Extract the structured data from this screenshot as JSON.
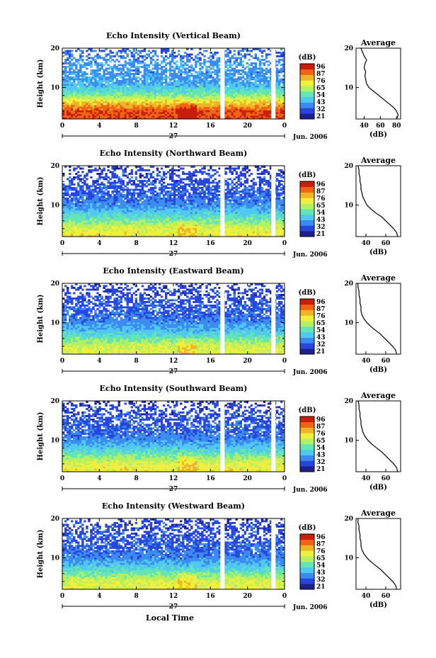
{
  "figure": {
    "xlabel": "Local Time",
    "date_label": "Jun. 2006",
    "day_label": "27",
    "colorbar_unit": "(dB)",
    "colorbar_ticks": [
      "96",
      "87",
      "76",
      "65",
      "54",
      "43",
      "32",
      "21"
    ],
    "colors": {
      "scale": [
        "#1e1e8c",
        "#2846dc",
        "#3c8cf0",
        "#50c8f0",
        "#64e6b4",
        "#b4f064",
        "#f0f03c",
        "#f0b428",
        "#f06414",
        "#c81e0a"
      ],
      "line": "#000000",
      "gap": "#ffffff"
    }
  },
  "chart_data": [
    {
      "type": "heatmap",
      "title": "Echo Intensity (Vertical Beam)",
      "ylabel": "Height (km)",
      "xlim": [
        0,
        24
      ],
      "ylim": [
        2,
        20
      ],
      "xticks": [
        0,
        4,
        8,
        12,
        16,
        20,
        24
      ],
      "yticks": [
        10,
        20
      ],
      "colorbar_range": [
        21,
        96
      ],
      "gaps_hours": [
        17.3,
        22.8
      ],
      "profile_by_height_dB": [
        {
          "height_km": 2,
          "dB": 87
        },
        {
          "height_km": 4,
          "dB": 88
        },
        {
          "height_km": 6,
          "dB": 76
        },
        {
          "height_km": 8,
          "dB": 58
        },
        {
          "height_km": 10,
          "dB": 48
        },
        {
          "height_km": 12,
          "dB": 42
        },
        {
          "height_km": 14,
          "dB": 40
        },
        {
          "height_km": 16,
          "dB": 42
        },
        {
          "height_km": 18,
          "dB": 38
        },
        {
          "height_km": 20,
          "dB": 34
        }
      ],
      "average": {
        "title": "Average",
        "xlabel": "(dB)",
        "xticks": [
          40,
          60,
          80
        ],
        "xlim": [
          30,
          85
        ],
        "heights": [
          2,
          3,
          4,
          5,
          6,
          7,
          8,
          9,
          10,
          11,
          12,
          13,
          14,
          15,
          16,
          17,
          18,
          19,
          20
        ],
        "values": [
          80,
          82,
          80,
          76,
          70,
          64,
          58,
          52,
          46,
          43,
          42,
          41,
          42,
          40,
          41,
          43,
          40,
          38,
          36
        ]
      }
    },
    {
      "type": "heatmap",
      "title": "Echo Intensity (Northward Beam)",
      "ylabel": "Height (km)",
      "xlim": [
        0,
        24
      ],
      "ylim": [
        2,
        20
      ],
      "xticks": [
        0,
        4,
        8,
        12,
        16,
        20,
        24
      ],
      "yticks": [
        10,
        20
      ],
      "colorbar_range": [
        21,
        96
      ],
      "gaps_hours": [
        17.3,
        22.8
      ],
      "profile_by_height_dB": [
        {
          "height_km": 2,
          "dB": 70
        },
        {
          "height_km": 4,
          "dB": 68
        },
        {
          "height_km": 6,
          "dB": 58
        },
        {
          "height_km": 8,
          "dB": 48
        },
        {
          "height_km": 10,
          "dB": 40
        },
        {
          "height_km": 12,
          "dB": 36
        },
        {
          "height_km": 14,
          "dB": 34
        },
        {
          "height_km": 16,
          "dB": 33
        },
        {
          "height_km": 18,
          "dB": 32
        },
        {
          "height_km": 20,
          "dB": 30
        }
      ],
      "average": {
        "title": "Average",
        "xlabel": "(dB)",
        "xticks": [
          40,
          60
        ],
        "xlim": [
          30,
          75
        ],
        "heights": [
          2,
          3,
          4,
          5,
          6,
          7,
          8,
          9,
          10,
          11,
          12,
          13,
          14,
          15,
          16,
          17,
          18,
          19,
          20
        ],
        "values": [
          72,
          71,
          68,
          64,
          60,
          56,
          50,
          45,
          41,
          39,
          37,
          36,
          35,
          35,
          34,
          34,
          33,
          33,
          32
        ]
      }
    },
    {
      "type": "heatmap",
      "title": "Echo Intensity (Eastward Beam)",
      "ylabel": "Height (km)",
      "xlim": [
        0,
        24
      ],
      "ylim": [
        2,
        20
      ],
      "xticks": [
        0,
        4,
        8,
        12,
        16,
        20,
        24
      ],
      "yticks": [
        10,
        20
      ],
      "colorbar_range": [
        21,
        96
      ],
      "gaps_hours": [
        17.3,
        22.8
      ],
      "profile_by_height_dB": [
        {
          "height_km": 2,
          "dB": 68
        },
        {
          "height_km": 4,
          "dB": 66
        },
        {
          "height_km": 6,
          "dB": 56
        },
        {
          "height_km": 8,
          "dB": 46
        },
        {
          "height_km": 10,
          "dB": 40
        },
        {
          "height_km": 12,
          "dB": 36
        },
        {
          "height_km": 14,
          "dB": 34
        },
        {
          "height_km": 16,
          "dB": 33
        },
        {
          "height_km": 18,
          "dB": 32
        },
        {
          "height_km": 20,
          "dB": 30
        }
      ],
      "average": {
        "title": "Average",
        "xlabel": "(dB)",
        "xticks": [
          40,
          60
        ],
        "xlim": [
          30,
          75
        ],
        "heights": [
          2,
          3,
          4,
          5,
          6,
          7,
          8,
          9,
          10,
          11,
          12,
          13,
          14,
          15,
          16,
          17,
          18,
          19,
          20
        ],
        "values": [
          71,
          70,
          67,
          63,
          59,
          55,
          50,
          45,
          41,
          38,
          36,
          35,
          35,
          34,
          34,
          33,
          33,
          32,
          32
        ]
      }
    },
    {
      "type": "heatmap",
      "title": "Echo Intensity (Southward Beam)",
      "ylabel": "Height (km)",
      "xlim": [
        0,
        24
      ],
      "ylim": [
        2,
        20
      ],
      "xticks": [
        0,
        4,
        8,
        12,
        16,
        20,
        24
      ],
      "yticks": [
        10,
        20
      ],
      "colorbar_range": [
        21,
        96
      ],
      "gaps_hours": [
        17.3,
        22.8
      ],
      "profile_by_height_dB": [
        {
          "height_km": 2,
          "dB": 70
        },
        {
          "height_km": 4,
          "dB": 68
        },
        {
          "height_km": 6,
          "dB": 58
        },
        {
          "height_km": 8,
          "dB": 48
        },
        {
          "height_km": 10,
          "dB": 40
        },
        {
          "height_km": 12,
          "dB": 36
        },
        {
          "height_km": 14,
          "dB": 34
        },
        {
          "height_km": 16,
          "dB": 33
        },
        {
          "height_km": 18,
          "dB": 32
        },
        {
          "height_km": 20,
          "dB": 30
        }
      ],
      "average": {
        "title": "Average",
        "xlabel": "(dB)",
        "xticks": [
          40,
          60
        ],
        "xlim": [
          30,
          75
        ],
        "heights": [
          2,
          3,
          4,
          5,
          6,
          7,
          8,
          9,
          10,
          11,
          12,
          13,
          14,
          15,
          16,
          17,
          18,
          19,
          20
        ],
        "values": [
          72,
          71,
          68,
          64,
          60,
          56,
          51,
          46,
          42,
          39,
          37,
          36,
          35,
          35,
          34,
          34,
          33,
          33,
          32
        ]
      }
    },
    {
      "type": "heatmap",
      "title": "Echo Intensity (Westward Beam)",
      "ylabel": "Height (km)",
      "xlim": [
        0,
        24
      ],
      "ylim": [
        2,
        20
      ],
      "xticks": [
        0,
        4,
        8,
        12,
        16,
        20,
        24
      ],
      "yticks": [
        10,
        20
      ],
      "colorbar_range": [
        21,
        96
      ],
      "gaps_hours": [
        17.3,
        22.8
      ],
      "profile_by_height_dB": [
        {
          "height_km": 2,
          "dB": 69
        },
        {
          "height_km": 4,
          "dB": 67
        },
        {
          "height_km": 6,
          "dB": 57
        },
        {
          "height_km": 8,
          "dB": 47
        },
        {
          "height_km": 10,
          "dB": 40
        },
        {
          "height_km": 12,
          "dB": 36
        },
        {
          "height_km": 14,
          "dB": 34
        },
        {
          "height_km": 16,
          "dB": 33
        },
        {
          "height_km": 18,
          "dB": 32
        },
        {
          "height_km": 20,
          "dB": 30
        }
      ],
      "average": {
        "title": "Average",
        "xlabel": "(dB)",
        "xticks": [
          40,
          60
        ],
        "xlim": [
          30,
          75
        ],
        "heights": [
          2,
          3,
          4,
          5,
          6,
          7,
          8,
          9,
          10,
          11,
          12,
          13,
          14,
          15,
          16,
          17,
          18,
          19,
          20
        ],
        "values": [
          71,
          70,
          67,
          63,
          59,
          55,
          50,
          45,
          41,
          38,
          36,
          35,
          35,
          34,
          34,
          33,
          33,
          32,
          32
        ]
      }
    }
  ]
}
